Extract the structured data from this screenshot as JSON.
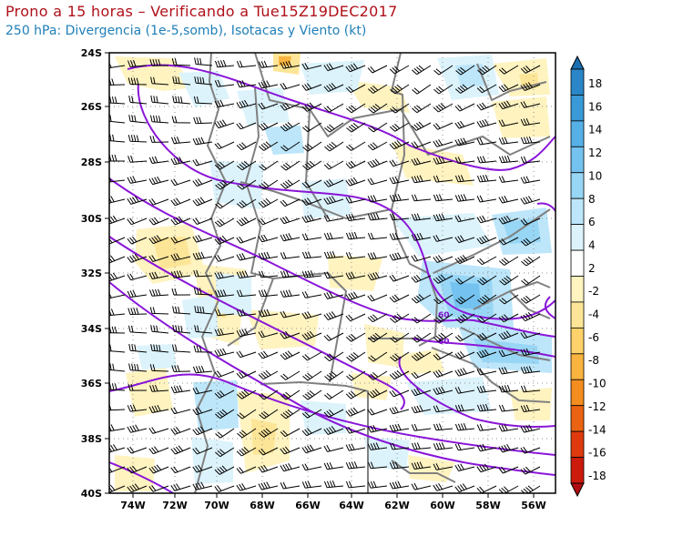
{
  "header": {
    "title": "Prono a 15 horas – Verificando a Tue15Z19DEC2017",
    "subtitle": "250 hPa: Divergencia (1e-5,somb), Isotacas y Viento (kt)"
  },
  "map": {
    "lon_range": [
      -75,
      -55
    ],
    "lat_range": [
      -40,
      -24
    ],
    "x_ticks": [
      "74W",
      "72W",
      "70W",
      "68W",
      "66W",
      "64W",
      "62W",
      "60W",
      "58W",
      "56W"
    ],
    "y_ticks": [
      "24S",
      "26S",
      "28S",
      "30S",
      "32S",
      "34S",
      "36S",
      "38S",
      "40S"
    ],
    "isotach_labels": [
      "60",
      "60"
    ],
    "colors": {
      "isotach": "#8a16d8",
      "borders": "#808080",
      "grid": "#909090"
    }
  },
  "colorbar": {
    "labels": [
      "18",
      "16",
      "14",
      "12",
      "10",
      "8",
      "6",
      "4",
      "2",
      "-2",
      "-4",
      "-6",
      "-8",
      "-10",
      "-12",
      "-14",
      "-16",
      "-18"
    ],
    "colors": [
      "#1a6fb0",
      "#2a86c8",
      "#3a9ad8",
      "#55b0e6",
      "#74c2ef",
      "#98d6f5",
      "#bde6fa",
      "#dcf3fc",
      "#ffffff",
      "#fff3c0",
      "#fde597",
      "#fdd26a",
      "#f9b440",
      "#f38d20",
      "#ea6312",
      "#de3a0e",
      "#cc1a0c",
      "#b10d10"
    ]
  }
}
